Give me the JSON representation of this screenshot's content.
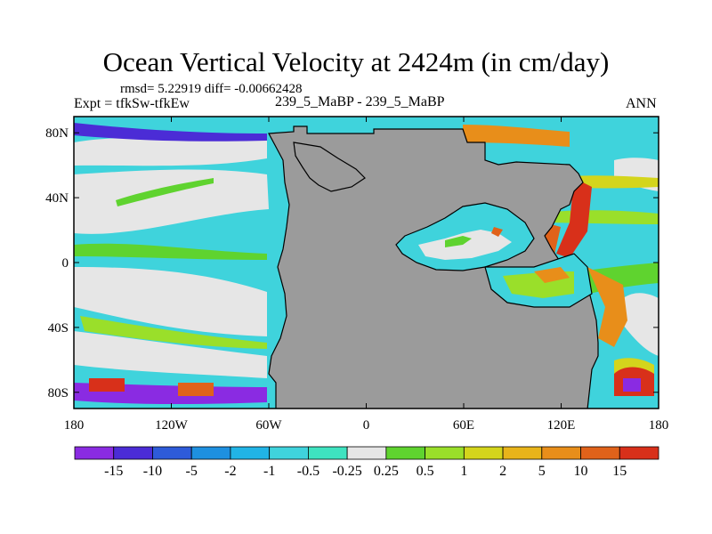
{
  "title": "Ocean Vertical Velocity at 2424m (in cm/day)",
  "stats": "rmsd= 5.22919 diff= -0.00662428",
  "experiment": "Expt = tfkSw-tfkEw",
  "center_label": "239_5_MaBP - 239_5_MaBP",
  "season": "ANN",
  "map": {
    "projection": "cylindrical equidistant",
    "lon_range": [
      -180,
      180
    ],
    "lat_range": [
      -90,
      90
    ],
    "land_color": "#9b9b9b",
    "lat_ticks": [
      {
        "value": 80,
        "label": "80N"
      },
      {
        "value": 40,
        "label": "40N"
      },
      {
        "value": 0,
        "label": "0"
      },
      {
        "value": -40,
        "label": "40S"
      },
      {
        "value": -80,
        "label": "80S"
      }
    ],
    "lon_ticks": [
      {
        "value": -180,
        "label": "180"
      },
      {
        "value": -120,
        "label": "120W"
      },
      {
        "value": -60,
        "label": "60W"
      },
      {
        "value": 0,
        "label": "0"
      },
      {
        "value": 60,
        "label": "60E"
      },
      {
        "value": 120,
        "label": "120E"
      },
      {
        "value": 180,
        "label": "180"
      }
    ]
  },
  "colorbar": {
    "labels": [
      "-15",
      "-10",
      "-5",
      "-2",
      "-1",
      "-0.5",
      "-0.25",
      "0.25",
      "0.5",
      "1",
      "2",
      "5",
      "10",
      "15"
    ],
    "colors": [
      "#8a2be2",
      "#4b2cd6",
      "#2e5bd9",
      "#1e90e0",
      "#21b4e6",
      "#3fd3dc",
      "#3ee3c0",
      "#e6e6e6",
      "#5fd32f",
      "#9adf2a",
      "#d4d51c",
      "#e8b41a",
      "#e88e1a",
      "#e0621a",
      "#d8301a"
    ]
  }
}
